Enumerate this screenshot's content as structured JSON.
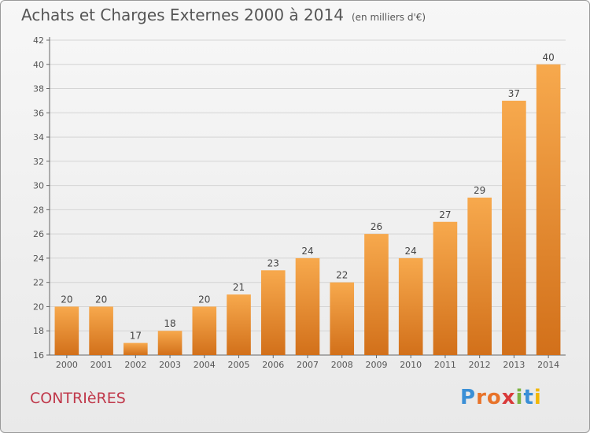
{
  "title": "Achats et Charges Externes 2000 à 2014",
  "unit": "(en milliers d'€)",
  "commune": "CONTRIèRES",
  "logo": {
    "text": "Proxiti",
    "letter_colors": [
      "#3a8fd6",
      "#e8732a",
      "#e8732a",
      "#d93a3a",
      "#7cb342",
      "#3a8fd6",
      "#f2b705"
    ]
  },
  "colors": {
    "bar_light": "#f7a94d",
    "bar_dark": "#d2701a",
    "axis": "#666666",
    "grid": "#d4d4d4"
  },
  "chart_data": {
    "type": "bar",
    "categories": [
      "2000",
      "2001",
      "2002",
      "2003",
      "2004",
      "2005",
      "2006",
      "2007",
      "2008",
      "2009",
      "2010",
      "2011",
      "2012",
      "2013",
      "2014"
    ],
    "values": [
      20,
      20,
      17,
      18,
      20,
      21,
      23,
      24,
      22,
      26,
      24,
      27,
      29,
      37,
      40
    ],
    "ylim": [
      16,
      42
    ],
    "yticks": [
      16,
      18,
      20,
      22,
      24,
      26,
      28,
      30,
      32,
      34,
      36,
      38,
      40,
      42
    ],
    "grid": "horizontal",
    "legend": "none"
  }
}
